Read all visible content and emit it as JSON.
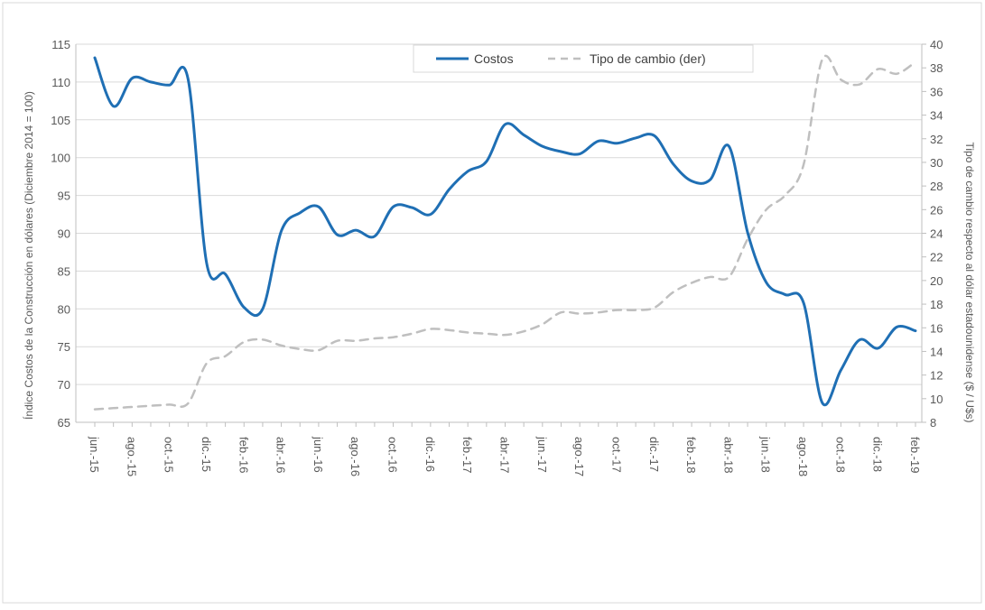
{
  "chart_data": {
    "type": "line",
    "title": "",
    "ylabel_left": "Índice Costos de la Construcción en dólares (Diciembre 2014 = 100)",
    "ylabel_right": "Tipo de cambio respecto al dólar estadounidense ($ / U$s)",
    "ylim_left": [
      65,
      115
    ],
    "ylim_right": [
      8,
      40
    ],
    "yticks_left": [
      65,
      70,
      75,
      80,
      85,
      90,
      95,
      100,
      105,
      110,
      115
    ],
    "yticks_right": [
      8,
      10,
      12,
      14,
      16,
      18,
      20,
      22,
      24,
      26,
      28,
      30,
      32,
      34,
      36,
      38,
      40
    ],
    "grid": "horizontal",
    "legend_position": "top-right",
    "months": [
      "jun.-15",
      "jul.-15",
      "ago.-15",
      "sep.-15",
      "oct.-15",
      "nov.-15",
      "dic.-15",
      "ene.-16",
      "feb.-16",
      "mar.-16",
      "abr.-16",
      "may.-16",
      "jun.-16",
      "jul.-16",
      "ago.-16",
      "sep.-16",
      "oct.-16",
      "nov.-16",
      "dic.-16",
      "ene.-17",
      "feb.-17",
      "mar.-17",
      "abr.-17",
      "may.-17",
      "jun.-17",
      "jul.-17",
      "ago.-17",
      "sep.-17",
      "oct.-17",
      "nov.-17",
      "dic.-17",
      "ene.-18",
      "feb.-18",
      "mar.-18",
      "abr.-18",
      "may.-18",
      "jun.-18",
      "jul.-18",
      "ago.-18",
      "sep.-18",
      "oct.-18",
      "nov.-18",
      "dic.-18",
      "ene.-19",
      "feb.-19"
    ],
    "tick_labels": [
      "jun.-15",
      "ago.-15",
      "oct.-15",
      "dic.-15",
      "feb.-16",
      "abr.-16",
      "jun.-16",
      "ago.-16",
      "oct.-16",
      "dic.-16",
      "feb.-17",
      "abr.-17",
      "jun.-17",
      "ago.-17",
      "oct.-17",
      "dic.-17",
      "feb.-18",
      "abr.-18",
      "jun.-18",
      "ago.-18",
      "oct.-18",
      "dic.-18",
      "feb.-19"
    ],
    "series": [
      {
        "name": "Costos",
        "axis": "left",
        "color": "#1f6fb4",
        "style": "solid",
        "values": [
          113.2,
          106.8,
          110.5,
          110.0,
          109.6,
          110.4,
          86.0,
          84.6,
          80.2,
          80.0,
          90.3,
          92.7,
          93.5,
          89.8,
          90.4,
          89.6,
          93.5,
          93.4,
          92.5,
          95.8,
          98.2,
          99.5,
          104.4,
          103.0,
          101.5,
          100.8,
          100.5,
          102.2,
          101.9,
          102.6,
          102.9,
          99.2,
          96.9,
          97.1,
          101.5,
          90.1,
          83.5,
          81.9,
          80.8,
          67.6,
          71.9,
          75.9,
          74.8,
          77.6,
          77.1
        ]
      },
      {
        "name": "Tipo de cambio (der)",
        "axis": "right",
        "color": "#bfbfbf",
        "style": "dashed",
        "values": [
          9.1,
          9.2,
          9.3,
          9.4,
          9.5,
          9.6,
          13.0,
          13.6,
          14.8,
          15.0,
          14.5,
          14.2,
          14.1,
          14.9,
          14.9,
          15.1,
          15.2,
          15.5,
          15.9,
          15.8,
          15.6,
          15.5,
          15.4,
          15.7,
          16.3,
          17.3,
          17.2,
          17.3,
          17.5,
          17.5,
          17.7,
          19.0,
          19.8,
          20.3,
          20.3,
          23.5,
          26.0,
          27.2,
          29.8,
          38.7,
          37.0,
          36.6,
          37.9,
          37.5,
          38.5
        ]
      }
    ]
  }
}
